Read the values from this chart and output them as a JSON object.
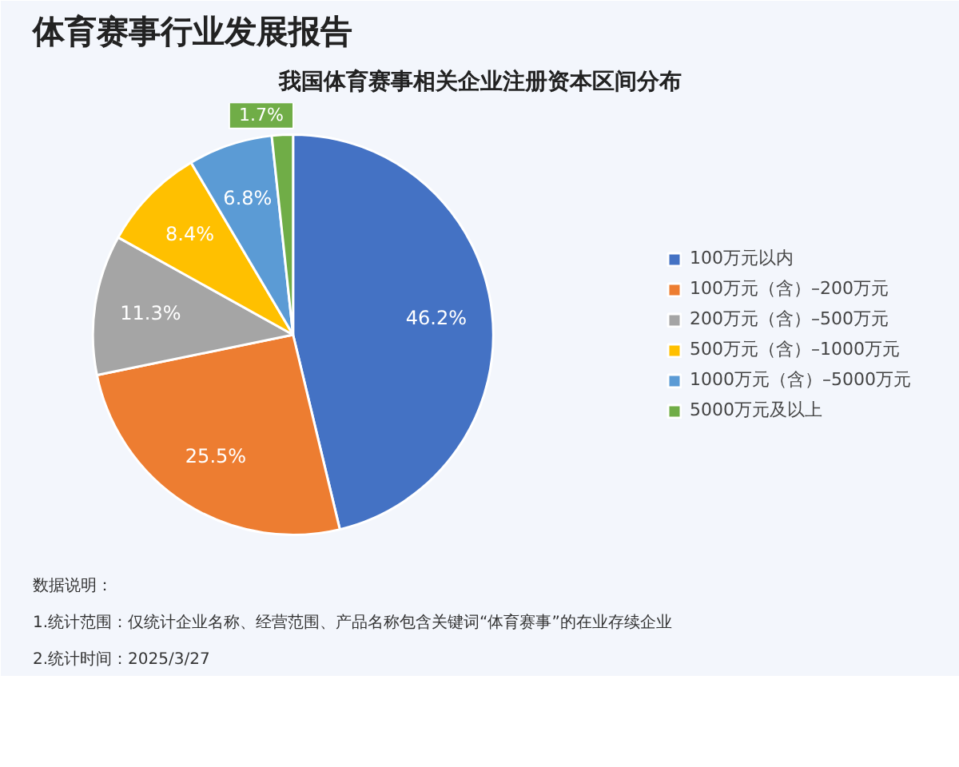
{
  "chart_data": {
    "type": "pie",
    "title": "体育赛事行业发展报告",
    "subtitle": "我国体育赛事相关企业注册资本区间分布",
    "categories": [
      "100万元以内",
      "100万元（含）–200万元",
      "200万元（含）–500万元",
      "500万元（含）–1000万元",
      "1000万元（含）–5000万元",
      "5000万元及以上"
    ],
    "values": [
      46.2,
      25.5,
      11.3,
      8.4,
      6.8,
      1.7
    ],
    "value_labels": [
      "46.2%",
      "25.5%",
      "11.3%",
      "8.4%",
      "6.8%",
      "1.7%"
    ],
    "colors": [
      "#4472c4",
      "#ed7d31",
      "#a5a5a5",
      "#ffc000",
      "#5b9bd5",
      "#70ad47"
    ],
    "legend": "right",
    "annotations": [
      "数据说明：",
      "1.统计范围：仅统计企业名称、经营范围、产品名称包含关键词“体育赛事”的在业存续企业",
      "2.统计时间：2025/3/27"
    ]
  }
}
